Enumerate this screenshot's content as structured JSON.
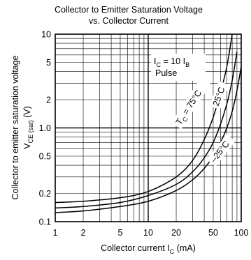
{
  "chart_data": {
    "type": "line",
    "title_line1": "Collector to Emitter Saturation Voltage",
    "title_line2": "vs. Collector Current",
    "xlabel": {
      "main": "Collector current  I",
      "sub": "C",
      "unit": " (mA)"
    },
    "ylabel": {
      "line1": "Collector to emitter saturation voltage",
      "main": "V",
      "sub": "CE (sat)",
      "unit": " (V)"
    },
    "x_scale": "log",
    "y_scale": "log",
    "xlim": [
      1,
      100
    ],
    "ylim": [
      0.1,
      10
    ],
    "grid": true,
    "x_ticks": [
      {
        "value": 1,
        "label": "1"
      },
      {
        "value": 2,
        "label": "2"
      },
      {
        "value": 5,
        "label": "5"
      },
      {
        "value": 10,
        "label": "10"
      },
      {
        "value": 20,
        "label": "20"
      },
      {
        "value": 50,
        "label": "50"
      },
      {
        "value": 100,
        "label": "100"
      }
    ],
    "y_ticks": [
      {
        "value": 10,
        "label": "10"
      },
      {
        "value": 5,
        "label": "5"
      },
      {
        "value": 2,
        "label": "2"
      },
      {
        "value": 1,
        "label": "1.0"
      },
      {
        "value": 0.5,
        "label": "0.5"
      },
      {
        "value": 0.2,
        "label": "0.2"
      },
      {
        "value": 0.1,
        "label": "0.1"
      }
    ],
    "condition": {
      "line1_main": "I",
      "line1_sub1": "C",
      "line1_mid": " = 10 I",
      "line1_sub2": "B",
      "line2": "Pulse"
    },
    "series": [
      {
        "label": {
          "main": "T",
          "sub": "C",
          "rest": " = 75°C"
        },
        "x": [
          1,
          2,
          5,
          10,
          20,
          30,
          40,
          50,
          60,
          70,
          80
        ],
        "y": [
          0.16,
          0.165,
          0.18,
          0.21,
          0.3,
          0.45,
          0.75,
          1.3,
          2.4,
          4.5,
          10
        ]
      },
      {
        "label": {
          "main": "",
          "sub": "",
          "rest": "25°C"
        },
        "x": [
          1,
          2,
          5,
          10,
          20,
          30,
          40,
          50,
          60,
          70,
          80,
          90
        ],
        "y": [
          0.14,
          0.145,
          0.16,
          0.19,
          0.25,
          0.34,
          0.48,
          0.7,
          1.1,
          1.8,
          3.2,
          6.5
        ]
      },
      {
        "label": {
          "main": "",
          "sub": "",
          "rest": "–25°C"
        },
        "x": [
          1,
          2,
          5,
          10,
          20,
          30,
          40,
          50,
          60,
          70,
          80,
          90,
          100
        ],
        "y": [
          0.125,
          0.13,
          0.145,
          0.165,
          0.215,
          0.28,
          0.37,
          0.5,
          0.7,
          1.0,
          1.5,
          2.5,
          4.5
        ]
      }
    ]
  }
}
